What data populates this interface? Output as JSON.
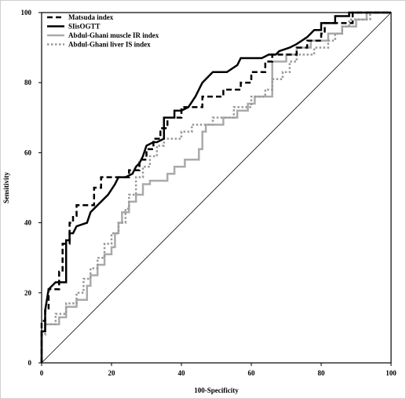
{
  "chart_data": {
    "type": "line",
    "title": "",
    "xlabel": "100-Specificity",
    "ylabel": "Sensitivity",
    "xlim": [
      0,
      100
    ],
    "ylim": [
      0,
      100
    ],
    "xticks": [
      "0",
      "20",
      "40",
      "60",
      "80",
      "100"
    ],
    "yticks": [
      "0",
      "20",
      "40",
      "60",
      "80",
      "100"
    ],
    "grid": false,
    "legend_position": "top-left",
    "reference_line": {
      "x": [
        0,
        100
      ],
      "y": [
        0,
        100
      ],
      "color": "#000000"
    },
    "series": [
      {
        "name": "Matsuda index",
        "color": "#000000",
        "dash": "dashed",
        "width": 2.5,
        "points": [
          [
            0,
            0
          ],
          [
            0,
            12
          ],
          [
            1,
            12
          ],
          [
            1,
            15
          ],
          [
            2,
            15
          ],
          [
            2,
            21
          ],
          [
            5,
            21
          ],
          [
            5,
            26
          ],
          [
            6,
            26
          ],
          [
            6,
            34
          ],
          [
            8,
            34
          ],
          [
            8,
            40
          ],
          [
            9,
            40
          ],
          [
            9,
            42
          ],
          [
            10,
            42
          ],
          [
            10,
            45
          ],
          [
            15,
            45
          ],
          [
            15,
            50
          ],
          [
            17,
            50
          ],
          [
            17,
            53
          ],
          [
            25,
            53
          ],
          [
            25,
            55
          ],
          [
            28,
            55
          ],
          [
            28,
            58
          ],
          [
            30,
            58
          ],
          [
            30,
            61
          ],
          [
            32,
            61
          ],
          [
            32,
            64
          ],
          [
            34,
            64
          ],
          [
            34,
            67
          ],
          [
            36,
            67
          ],
          [
            36,
            70
          ],
          [
            40,
            70
          ],
          [
            40,
            73
          ],
          [
            46,
            73
          ],
          [
            46,
            76
          ],
          [
            52,
            76
          ],
          [
            52,
            78
          ],
          [
            57,
            78
          ],
          [
            57,
            80
          ],
          [
            60,
            80
          ],
          [
            60,
            83
          ],
          [
            64,
            83
          ],
          [
            64,
            86
          ],
          [
            66,
            86
          ],
          [
            66,
            88
          ],
          [
            73,
            88
          ],
          [
            73,
            90
          ],
          [
            76,
            90
          ],
          [
            76,
            92
          ],
          [
            80,
            92
          ],
          [
            80,
            94
          ],
          [
            81,
            94
          ],
          [
            81,
            97
          ],
          [
            89,
            97
          ],
          [
            89,
            100
          ],
          [
            100,
            100
          ]
        ]
      },
      {
        "name": "SIisOGTT",
        "color": "#000000",
        "dash": "solid",
        "width": 2.5,
        "points": [
          [
            0,
            0
          ],
          [
            0,
            9
          ],
          [
            1,
            9
          ],
          [
            1,
            15
          ],
          [
            2,
            21
          ],
          [
            4,
            23
          ],
          [
            7,
            23
          ],
          [
            7,
            35
          ],
          [
            8,
            35
          ],
          [
            8,
            37
          ],
          [
            9,
            37
          ],
          [
            10,
            39
          ],
          [
            13,
            40
          ],
          [
            14,
            43
          ],
          [
            16,
            45
          ],
          [
            19,
            48
          ],
          [
            21,
            51
          ],
          [
            22,
            53
          ],
          [
            24,
            53
          ],
          [
            26,
            54
          ],
          [
            27,
            56
          ],
          [
            28,
            57
          ],
          [
            29,
            59
          ],
          [
            30,
            62
          ],
          [
            32,
            63
          ],
          [
            33,
            63
          ],
          [
            35,
            64
          ],
          [
            35,
            70
          ],
          [
            38,
            70
          ],
          [
            38,
            72
          ],
          [
            40,
            72
          ],
          [
            42,
            73
          ],
          [
            44,
            76
          ],
          [
            46,
            80
          ],
          [
            47,
            81
          ],
          [
            49,
            83
          ],
          [
            53,
            83
          ],
          [
            56,
            85
          ],
          [
            57,
            87
          ],
          [
            63,
            87
          ],
          [
            65,
            88
          ],
          [
            67,
            88
          ],
          [
            68,
            89
          ],
          [
            71,
            90
          ],
          [
            73,
            91
          ],
          [
            76,
            93
          ],
          [
            78,
            95
          ],
          [
            80,
            95
          ],
          [
            80,
            97
          ],
          [
            84,
            97
          ],
          [
            84,
            99
          ],
          [
            88,
            99
          ],
          [
            88,
            100
          ],
          [
            100,
            100
          ]
        ]
      },
      {
        "name": "Abdul-Ghani muscle IR index",
        "color": "#aaaaaa",
        "dash": "solid",
        "width": 2.5,
        "points": [
          [
            0,
            0
          ],
          [
            0,
            9
          ],
          [
            1,
            9
          ],
          [
            1,
            11
          ],
          [
            5,
            11
          ],
          [
            5,
            13
          ],
          [
            7,
            13
          ],
          [
            7,
            16
          ],
          [
            10,
            16
          ],
          [
            10,
            18
          ],
          [
            13,
            18
          ],
          [
            13,
            22
          ],
          [
            14,
            22
          ],
          [
            14,
            25
          ],
          [
            16,
            25
          ],
          [
            16,
            28
          ],
          [
            18,
            28
          ],
          [
            18,
            31
          ],
          [
            20,
            31
          ],
          [
            20,
            33
          ],
          [
            21,
            33
          ],
          [
            21,
            37
          ],
          [
            22,
            37
          ],
          [
            22,
            40
          ],
          [
            23,
            40
          ],
          [
            23,
            43
          ],
          [
            25,
            43
          ],
          [
            25,
            46
          ],
          [
            27,
            46
          ],
          [
            27,
            48
          ],
          [
            29,
            48
          ],
          [
            29,
            51
          ],
          [
            31,
            51
          ],
          [
            31,
            52
          ],
          [
            36,
            52
          ],
          [
            36,
            54
          ],
          [
            38,
            54
          ],
          [
            38,
            56
          ],
          [
            41,
            56
          ],
          [
            41,
            58
          ],
          [
            45,
            58
          ],
          [
            45,
            61
          ],
          [
            46,
            61
          ],
          [
            46,
            66
          ],
          [
            47,
            66
          ],
          [
            47,
            68
          ],
          [
            52,
            68
          ],
          [
            52,
            70
          ],
          [
            56,
            70
          ],
          [
            56,
            72
          ],
          [
            59,
            72
          ],
          [
            59,
            74
          ],
          [
            61,
            74
          ],
          [
            61,
            76
          ],
          [
            66,
            76
          ],
          [
            66,
            86
          ],
          [
            70,
            86
          ],
          [
            70,
            88
          ],
          [
            73,
            88
          ],
          [
            73,
            90
          ],
          [
            77,
            90
          ],
          [
            77,
            92
          ],
          [
            82,
            92
          ],
          [
            82,
            94
          ],
          [
            86,
            94
          ],
          [
            86,
            96
          ],
          [
            90,
            96
          ],
          [
            90,
            98
          ],
          [
            93,
            98
          ],
          [
            93,
            100
          ],
          [
            100,
            100
          ]
        ]
      },
      {
        "name": "Abdul-Ghani liver IS index",
        "color": "#999999",
        "dash": "dotted",
        "width": 2.5,
        "points": [
          [
            0,
            0
          ],
          [
            0,
            8
          ],
          [
            1,
            8
          ],
          [
            1,
            11
          ],
          [
            4,
            11
          ],
          [
            4,
            14
          ],
          [
            7,
            14
          ],
          [
            7,
            17
          ],
          [
            10,
            17
          ],
          [
            10,
            20
          ],
          [
            12,
            20
          ],
          [
            12,
            24
          ],
          [
            14,
            24
          ],
          [
            14,
            27
          ],
          [
            16,
            27
          ],
          [
            16,
            30
          ],
          [
            18,
            30
          ],
          [
            18,
            34
          ],
          [
            20,
            34
          ],
          [
            20,
            37
          ],
          [
            22,
            37
          ],
          [
            22,
            40
          ],
          [
            24,
            40
          ],
          [
            24,
            44
          ],
          [
            25,
            44
          ],
          [
            25,
            48
          ],
          [
            27,
            48
          ],
          [
            27,
            53
          ],
          [
            29,
            53
          ],
          [
            29,
            56
          ],
          [
            31,
            56
          ],
          [
            31,
            59
          ],
          [
            33,
            59
          ],
          [
            33,
            62
          ],
          [
            35,
            62
          ],
          [
            35,
            64
          ],
          [
            40,
            64
          ],
          [
            40,
            66
          ],
          [
            43,
            66
          ],
          [
            43,
            68
          ],
          [
            49,
            68
          ],
          [
            49,
            70
          ],
          [
            55,
            70
          ],
          [
            55,
            73
          ],
          [
            60,
            73
          ],
          [
            60,
            76
          ],
          [
            64,
            76
          ],
          [
            64,
            78
          ],
          [
            66,
            78
          ],
          [
            66,
            81
          ],
          [
            69,
            81
          ],
          [
            69,
            83
          ],
          [
            71,
            83
          ],
          [
            71,
            86
          ],
          [
            73,
            86
          ],
          [
            73,
            88
          ],
          [
            78,
            88
          ],
          [
            78,
            90
          ],
          [
            82,
            90
          ],
          [
            82,
            92
          ],
          [
            84,
            92
          ],
          [
            84,
            94
          ],
          [
            86,
            94
          ],
          [
            86,
            96
          ],
          [
            88,
            96
          ],
          [
            88,
            98
          ],
          [
            94,
            98
          ],
          [
            94,
            100
          ],
          [
            100,
            100
          ]
        ]
      }
    ]
  }
}
